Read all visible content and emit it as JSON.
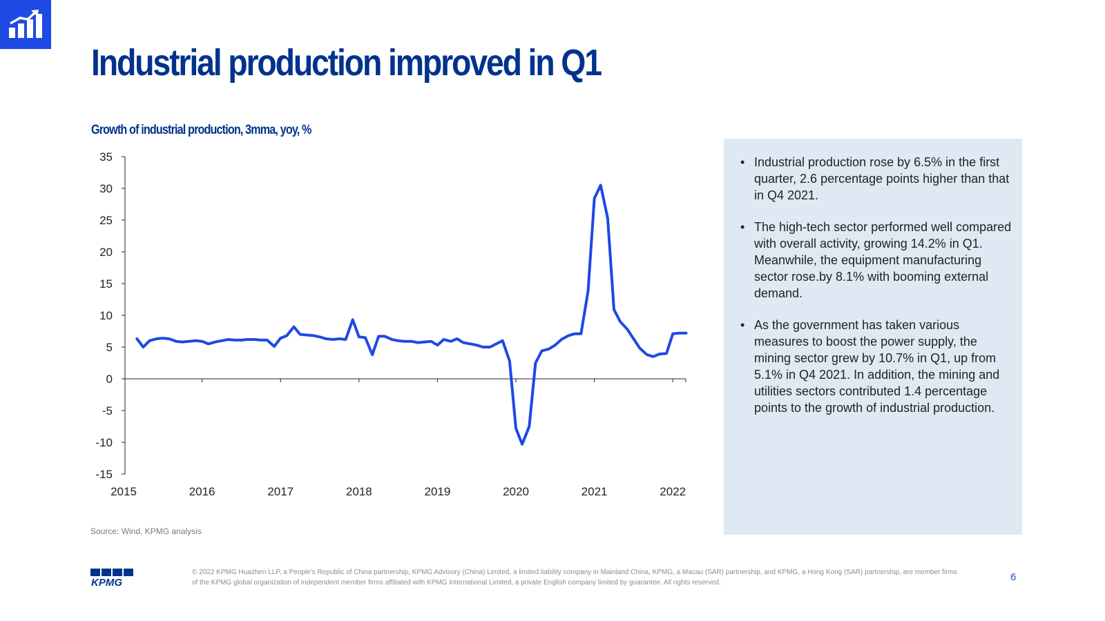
{
  "title": "Industrial production improved in Q1",
  "chart_subtitle": "Growth of industrial production, 3mma, yoy, %",
  "source": "Source: Wind, KPMG analysis",
  "bullets": [
    "Industrial production  rose by 6.5% in the first quarter, 2.6 percentage points higher than that in Q4 2021.",
    "The high-tech  sector performed well compared with overall activity, growing 14.2%  in Q1. Meanwhile, the equipment manufacturing sector rose.by 8.1% with booming external demand.",
    "As the government has taken various measures to boost the power supply, the mining sector grew by 10.7%  in Q1, up from 5.1% in Q4 2021. In addition,  the mining and utilities sectors contributed 1.4 percentage points to the growth of industrial production."
  ],
  "footer": "© 2022 KPMG Huazhen LLP, a People's Republic of China partnership, KPMG Advisory (China) Limited, a limited liability company in Mainland China, KPMG, a Macau (SAR) partnership, and KPMG, a Hong Kong (SAR) partnership, are member firms of the KPMG global organization of independent member firms affiliated with KPMG International Limited, a private English company limited by guarantee. All rights reserved.",
  "page_number": "6",
  "logo_text": "KPMG",
  "icons": {
    "corner": "bar-chart-growth-icon",
    "logo": "kpmg-logo"
  },
  "colors": {
    "brand_navy": "#00338d",
    "accent_blue": "#1e49e2",
    "line": "#1e49e2",
    "panel_bg": "#dfe9f4"
  },
  "chart_data": {
    "type": "line",
    "title": "Growth of industrial production, 3mma, yoy, %",
    "xlabel": "",
    "ylabel": "",
    "ylim": [
      -15,
      35
    ],
    "xlim": [
      2015,
      2022.2
    ],
    "yticks": [
      35,
      30,
      25,
      20,
      15,
      10,
      5,
      0,
      -5,
      -10,
      -15
    ],
    "xticks": [
      2015,
      2016,
      2017,
      2018,
      2019,
      2020,
      2021,
      2022
    ],
    "legend": "none",
    "grid": false,
    "series": [
      {
        "x": [
          2015.17,
          2015.25,
          2015.33,
          2015.42,
          2015.5,
          2015.58,
          2015.67,
          2015.75,
          2015.83,
          2015.92,
          2016.0,
          2016.08,
          2016.17,
          2016.25,
          2016.33,
          2016.42,
          2016.5,
          2016.58,
          2016.67,
          2016.75,
          2016.83,
          2016.92,
          2017.0,
          2017.08,
          2017.17,
          2017.25,
          2017.33,
          2017.42,
          2017.5,
          2017.58,
          2017.67,
          2017.75,
          2017.83,
          2017.92,
          2018.0,
          2018.08,
          2018.17,
          2018.25,
          2018.33,
          2018.42,
          2018.5,
          2018.58,
          2018.67,
          2018.75,
          2018.83,
          2018.92,
          2019.0,
          2019.08,
          2019.17,
          2019.25,
          2019.33,
          2019.42,
          2019.5,
          2019.58,
          2019.67,
          2019.75,
          2019.83,
          2019.92,
          2020.0,
          2020.08,
          2020.17,
          2020.25,
          2020.33,
          2020.42,
          2020.5,
          2020.58,
          2020.67,
          2020.75,
          2020.83,
          2020.92,
          2021.0,
          2021.08,
          2021.17,
          2021.25,
          2021.33,
          2021.42,
          2021.5,
          2021.58,
          2021.67,
          2021.75,
          2021.83,
          2021.92,
          2022.0,
          2022.08,
          2022.17
        ],
        "y": [
          6.3,
          5.0,
          6.0,
          6.3,
          6.4,
          6.3,
          5.9,
          5.8,
          5.9,
          6.0,
          5.9,
          5.5,
          5.8,
          6.0,
          6.2,
          6.1,
          6.1,
          6.2,
          6.2,
          6.1,
          6.1,
          5.1,
          6.4,
          6.8,
          8.2,
          7.0,
          6.9,
          6.8,
          6.6,
          6.3,
          6.2,
          6.3,
          6.2,
          9.3,
          6.6,
          6.5,
          3.8,
          6.7,
          6.7,
          6.2,
          6.0,
          5.9,
          5.9,
          5.7,
          5.8,
          5.9,
          5.3,
          6.2,
          5.9,
          6.3,
          5.7,
          5.5,
          5.3,
          5.0,
          5.0,
          5.5,
          6.0,
          2.8,
          -7.8,
          -10.3,
          -7.5,
          2.5,
          4.4,
          4.7,
          5.3,
          6.2,
          6.8,
          7.1,
          7.1,
          13.8,
          28.4,
          30.5,
          25.3,
          10.9,
          9.0,
          7.8,
          6.3,
          4.8,
          3.8,
          3.5,
          3.9,
          4.0,
          7.1,
          7.2,
          7.2
        ]
      }
    ]
  }
}
